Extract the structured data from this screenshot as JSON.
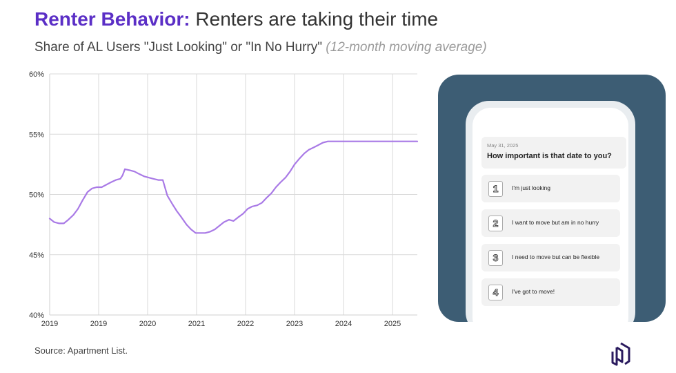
{
  "header": {
    "title_bold": "Renter Behavior:",
    "title_rest": "Renters are taking their time",
    "subtitle_main": "Share of AL Users \"Just Looking\" or \"In No Hurry\"",
    "subtitle_note": "(12-month moving average)"
  },
  "chart_data": {
    "type": "line",
    "title": "Share of AL Users \"Just Looking\" or \"In No Hurry\"",
    "xlabel": "",
    "ylabel": "",
    "xlim": [
      2019,
      2025.5
    ],
    "ylim": [
      40,
      60
    ],
    "y_ticks": [
      40,
      45,
      50,
      55,
      60
    ],
    "y_tick_labels": [
      "40%",
      "45%",
      "50%",
      "55%",
      "60%"
    ],
    "x_tick_labels": [
      "2019",
      "2019",
      "2020",
      "2021",
      "2022",
      "2023",
      "2024",
      "2025"
    ],
    "grid": true,
    "legend": "none",
    "color": "#a97ae6",
    "series": [
      {
        "name": "Share just looking or in no hurry",
        "x": [
          2019.0,
          2019.08,
          2019.17,
          2019.25,
          2019.33,
          2019.42,
          2019.5,
          2019.58,
          2019.67,
          2019.75,
          2019.83,
          2019.92,
          2020.0,
          2020.08,
          2020.17,
          2020.25,
          2020.29,
          2020.33,
          2020.42,
          2020.5,
          2020.58,
          2020.67,
          2020.75,
          2020.83,
          2020.92,
          2021.0,
          2021.08,
          2021.17,
          2021.25,
          2021.33,
          2021.42,
          2021.5,
          2021.58,
          2021.67,
          2021.75,
          2021.83,
          2021.92,
          2022.0,
          2022.08,
          2022.17,
          2022.25,
          2022.33,
          2022.42,
          2022.5,
          2022.58,
          2022.67,
          2022.75,
          2022.83,
          2022.92,
          2023.0,
          2023.08,
          2023.17,
          2023.25,
          2023.33,
          2023.42,
          2023.5,
          2023.58,
          2023.67,
          2023.75,
          2023.83,
          2023.92,
          2024.0,
          2024.08,
          2024.17,
          2024.25,
          2024.33,
          2024.42,
          2024.5,
          2024.58,
          2024.67,
          2024.75,
          2024.83,
          2024.92,
          2025.0,
          2025.08,
          2025.17,
          2025.25,
          2025.33,
          2025.42,
          2025.5
        ],
        "values": [
          48.0,
          47.7,
          47.6,
          47.6,
          47.9,
          48.3,
          48.8,
          49.5,
          50.2,
          50.5,
          50.6,
          50.6,
          50.8,
          51.0,
          51.2,
          51.3,
          51.6,
          52.1,
          52.0,
          51.9,
          51.7,
          51.5,
          51.4,
          51.3,
          51.2,
          51.2,
          49.9,
          49.2,
          48.6,
          48.1,
          47.5,
          47.1,
          46.8,
          46.8,
          46.8,
          46.9,
          47.1,
          47.4,
          47.7,
          47.9,
          47.8,
          48.1,
          48.4,
          48.8,
          49.0,
          49.1,
          49.3,
          49.7,
          50.1,
          50.6,
          51.0,
          51.4,
          51.9,
          52.5,
          53.0,
          53.4,
          53.7,
          53.9,
          54.1,
          54.3,
          54.4,
          54.4,
          54.4,
          54.4,
          54.4,
          54.4,
          54.4,
          54.4,
          54.4,
          54.4,
          54.4,
          54.4,
          54.4,
          54.4,
          54.4,
          54.4,
          54.4,
          54.4,
          54.4,
          54.4
        ]
      }
    ]
  },
  "source": "Source: Apartment List.",
  "phone": {
    "date": "May 31, 2025",
    "question": "How important is that date to you?",
    "options": [
      {
        "num": "1",
        "label": "I'm just looking"
      },
      {
        "num": "2",
        "label": "I want to move but am in no hurry"
      },
      {
        "num": "3",
        "label": "I need to move but can be flexible"
      },
      {
        "num": "4",
        "label": "I've got to move!"
      }
    ]
  },
  "colors": {
    "accent": "#5b2fc6",
    "line": "#a97ae6",
    "panel": "#3d5d74"
  },
  "logo_icon": "apartment-list-logo-icon"
}
